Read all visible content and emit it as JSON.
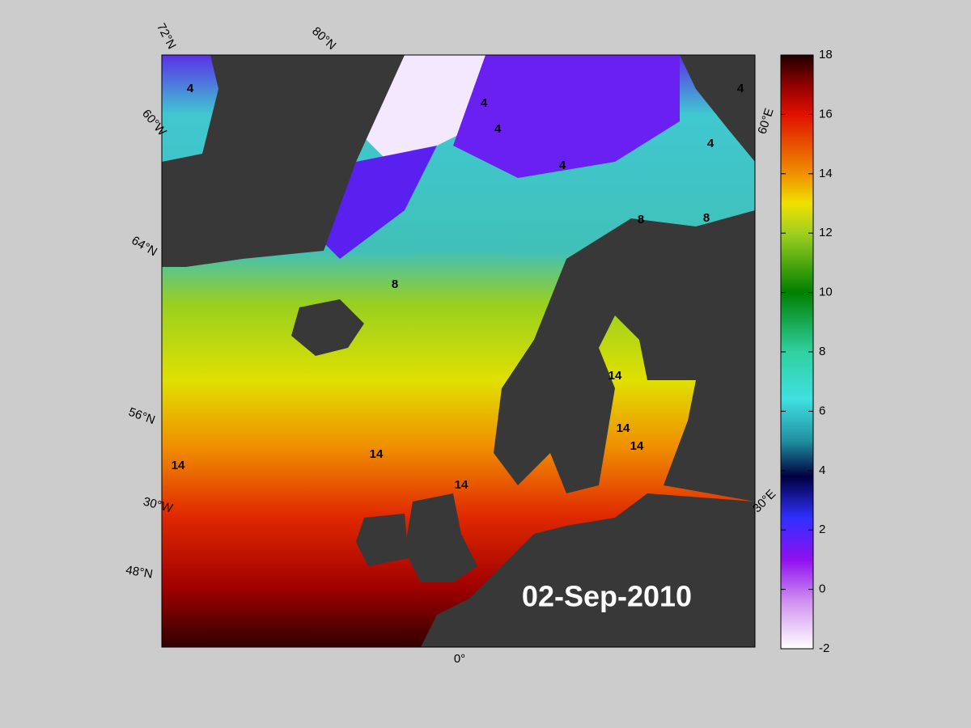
{
  "title": "02-Sep-2010",
  "grid_labels": [
    "72°N",
    "80°N",
    "60°W",
    "64°N",
    "56°N",
    "30°W",
    "48°N",
    "0°",
    "30°E",
    "60°E"
  ],
  "contour_labels": [
    4,
    4,
    4,
    4,
    4,
    4,
    8,
    8,
    8,
    14,
    14,
    14,
    14,
    14,
    14
  ],
  "colorbar": {
    "range": [
      -2,
      18
    ],
    "ticks": [
      -2,
      0,
      2,
      4,
      6,
      8,
      10,
      12,
      14,
      16,
      18
    ]
  }
}
